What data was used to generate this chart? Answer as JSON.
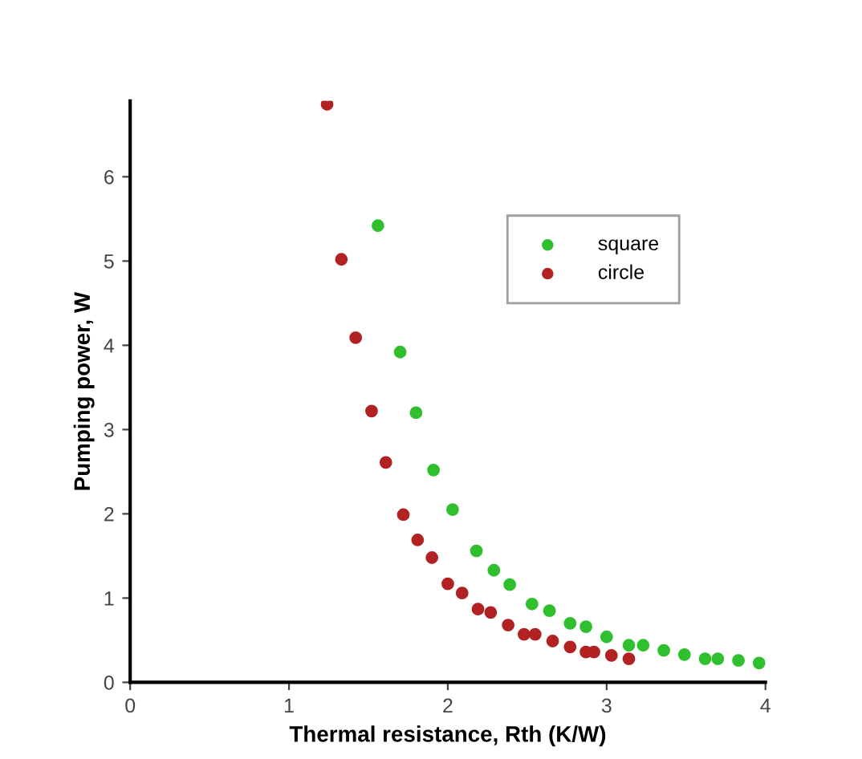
{
  "chart_data": {
    "type": "scatter",
    "xlabel": "Thermal resistance, Rth (K/W)",
    "ylabel": "Pumping power, W",
    "xlim": [
      0,
      4
    ],
    "ylim": [
      0,
      6.9
    ],
    "xticks": [
      0,
      1,
      2,
      3,
      4
    ],
    "yticks": [
      0,
      1,
      2,
      3,
      4,
      5,
      6
    ],
    "grid": false,
    "legend": "top right",
    "marker": "circle",
    "series": [
      {
        "name": "square",
        "color": "#2fbf2f",
        "x": [
          1.56,
          1.7,
          1.8,
          1.91,
          2.03,
          2.18,
          2.29,
          2.39,
          2.53,
          2.64,
          2.77,
          2.87,
          3.0,
          3.14,
          3.23,
          3.36,
          3.49,
          3.62,
          3.7,
          3.83,
          3.96
        ],
        "values": [
          5.42,
          3.92,
          3.2,
          2.52,
          2.05,
          1.56,
          1.33,
          1.16,
          0.93,
          0.85,
          0.7,
          0.66,
          0.54,
          0.44,
          0.44,
          0.38,
          0.33,
          0.28,
          0.28,
          0.26,
          0.23
        ]
      },
      {
        "name": "circle",
        "color": "#b22222",
        "x": [
          1.24,
          1.33,
          1.42,
          1.52,
          1.61,
          1.72,
          1.81,
          1.9,
          2.0,
          2.09,
          2.19,
          2.27,
          2.38,
          2.48,
          2.55,
          2.66,
          2.77,
          2.87,
          2.92,
          3.03,
          3.14
        ],
        "values": [
          6.86,
          5.02,
          4.09,
          3.22,
          2.61,
          1.99,
          1.69,
          1.48,
          1.17,
          1.06,
          0.87,
          0.83,
          0.68,
          0.57,
          0.57,
          0.49,
          0.42,
          0.36,
          0.36,
          0.32,
          0.28
        ]
      }
    ]
  }
}
